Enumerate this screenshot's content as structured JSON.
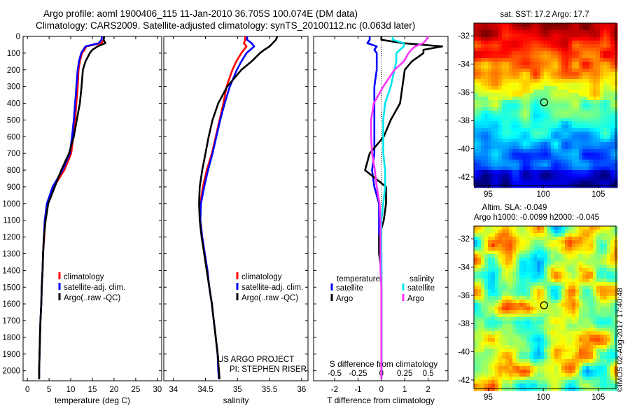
{
  "header": {
    "line1": "Argo profile: aoml 1900406_115 11-Jan-2010 36.705S 100.074E (DM data)",
    "line2": "Climatology: CARS2009. Satellite-adjusted climatology: synTS_20100112.nc (0.063d later)"
  },
  "depth_ticks": [
    0,
    100,
    200,
    300,
    400,
    500,
    600,
    700,
    800,
    900,
    1000,
    1100,
    1200,
    1300,
    1400,
    1500,
    1600,
    1700,
    1800,
    1900,
    2000
  ],
  "colors": {
    "climatology": "#ff0000",
    "satellite": "#0000ff",
    "argo": "#000000",
    "sat_salinity": "#00e5ee",
    "argo_salinity": "#ff33ff"
  },
  "footer": {
    "stamp": "©IMOS 02-Aug-2017 17:40:48"
  },
  "chart_data": [
    {
      "type": "line",
      "name": "temperature",
      "xlabel": "temperature (deg C)",
      "xlim": [
        -1,
        31
      ],
      "ylim": [
        2060,
        0
      ],
      "xticks": [
        0,
        5,
        10,
        15,
        20,
        25,
        30
      ],
      "legend": [
        "climatology",
        "satellite-adj. clim.",
        "Argo(..raw -QC)"
      ],
      "depth": [
        0,
        20,
        40,
        60,
        80,
        100,
        150,
        200,
        300,
        400,
        500,
        600,
        700,
        800,
        900,
        1000,
        1100,
        1200,
        1300,
        1400,
        1500,
        1600,
        1700,
        1800,
        1900,
        2000,
        2050
      ],
      "series": [
        {
          "name": "climatology",
          "values": [
            17.7,
            17.6,
            17.1,
            13.6,
            13.2,
            12.6,
            12.1,
            11.8,
            11.6,
            11.3,
            11.0,
            10.6,
            10.1,
            8.5,
            6.1,
            4.6,
            4.1,
            3.9,
            3.6,
            3.5,
            3.3,
            3.2,
            3.0,
            2.9,
            2.8,
            2.7,
            2.7
          ]
        },
        {
          "name": "satellite-adj. clim.",
          "values": [
            17.2,
            17.1,
            16.5,
            13.4,
            12.9,
            12.4,
            11.9,
            11.6,
            11.3,
            11.0,
            10.7,
            10.3,
            9.8,
            8.1,
            5.8,
            4.5,
            4.0,
            3.8,
            3.6,
            3.5,
            3.3,
            3.2,
            3.0,
            2.9,
            2.8,
            2.7,
            2.7
          ]
        },
        {
          "name": "Argo(..raw -QC)",
          "values": [
            17.7,
            17.6,
            18.0,
            16.2,
            15.0,
            14.4,
            13.4,
            12.8,
            12.5,
            12.1,
            11.4,
            10.7,
            9.6,
            7.8,
            6.3,
            4.8,
            4.2,
            3.8,
            3.6,
            3.5,
            3.3,
            3.2,
            3.0,
            2.9,
            2.8,
            2.7,
            2.7
          ]
        }
      ]
    },
    {
      "type": "line",
      "name": "salinity",
      "xlabel": "salinity",
      "xlim": [
        33.85,
        36.1
      ],
      "ylim": [
        2060,
        0
      ],
      "xticks": [
        34,
        34.5,
        35,
        35.5,
        36
      ],
      "xticklabels": [
        "34",
        "34.5",
        "35",
        "35.5",
        "36"
      ],
      "legend": [
        "climatology",
        "satellite-adj. clim.",
        "Argo(..raw -QC)"
      ],
      "annotation": [
        "US ARGO PROJECT",
        "PI: STEPHEN RISER"
      ],
      "depth": [
        0,
        20,
        40,
        60,
        80,
        100,
        150,
        200,
        300,
        400,
        500,
        600,
        700,
        800,
        900,
        1000,
        1100,
        1200,
        1300,
        1400,
        1500,
        1600,
        1700,
        1800,
        1900,
        2000,
        2050
      ],
      "series": [
        {
          "name": "climatology",
          "values": [
            35.12,
            35.12,
            35.1,
            35.14,
            35.1,
            35.06,
            34.98,
            34.92,
            34.83,
            34.78,
            34.72,
            34.66,
            34.6,
            34.52,
            34.46,
            34.42,
            34.42,
            34.45,
            34.49,
            34.53,
            34.56,
            34.6,
            34.63,
            34.66,
            34.69,
            34.71,
            34.72
          ]
        },
        {
          "name": "satellite-adj. clim.",
          "values": [
            35.15,
            35.15,
            35.22,
            35.26,
            35.2,
            35.14,
            35.06,
            34.99,
            34.88,
            34.8,
            34.73,
            34.67,
            34.61,
            34.54,
            34.48,
            34.43,
            34.42,
            34.45,
            34.49,
            34.53,
            34.56,
            34.6,
            34.63,
            34.66,
            34.69,
            34.7,
            34.71
          ]
        },
        {
          "name": "Argo(..raw -QC)",
          "values": [
            35.62,
            35.6,
            35.55,
            35.5,
            35.42,
            35.35,
            35.22,
            35.06,
            34.84,
            34.7,
            34.61,
            34.55,
            34.5,
            34.45,
            34.41,
            34.4,
            34.41,
            34.44,
            34.48,
            34.52,
            34.56,
            34.6,
            34.63,
            34.66,
            34.69,
            34.71,
            34.72
          ]
        }
      ]
    },
    {
      "type": "line",
      "name": "difference",
      "xlabel": "T difference from climatology",
      "xlabel2": "S difference from climatology",
      "xlim": [
        -2.9,
        2.85
      ],
      "ylim": [
        2060,
        0
      ],
      "xticks": [
        -2,
        -1,
        0,
        1,
        2
      ],
      "top_xticks": [
        -0.5,
        -0.25,
        0,
        0.25,
        0.5
      ],
      "top_xticklabels": [
        "-0.5",
        "-0.25",
        "0",
        "0.25",
        "0.5"
      ],
      "legend_headers": [
        "temperature",
        "salinity"
      ],
      "legend": [
        "satellite",
        "Argo",
        "satellite",
        "Argo"
      ],
      "depth": [
        0,
        20,
        40,
        60,
        80,
        100,
        150,
        200,
        300,
        400,
        500,
        600,
        700,
        800,
        900,
        1000,
        1100,
        1200,
        1300,
        1400,
        1500,
        1600,
        1700,
        1800,
        1900,
        2000,
        2050
      ],
      "series": [
        {
          "name": "temperature satellite",
          "values": [
            -0.5,
            -0.5,
            -0.6,
            -0.2,
            -0.3,
            -0.2,
            -0.2,
            -0.2,
            -0.3,
            -0.3,
            -0.3,
            -0.3,
            -0.3,
            -0.4,
            -0.3,
            -0.1,
            -0.1,
            -0.1,
            0,
            0,
            0,
            0,
            0,
            0,
            0,
            0,
            0
          ]
        },
        {
          "name": "temperature Argo",
          "values": [
            0,
            0,
            0.9,
            2.6,
            1.8,
            1.8,
            1.3,
            1.0,
            0.9,
            0.8,
            0.4,
            0.1,
            -0.5,
            -0.7,
            0.2,
            0.2,
            0.1,
            -0.1,
            -0.1,
            0,
            0,
            0,
            0,
            0,
            0,
            0,
            0
          ]
        },
        {
          "name": "salinity satellite",
          "values": [
            0.12,
            0.12,
            0.24,
            0.24,
            0.2,
            0.16,
            0.16,
            0.14,
            0.1,
            0.04,
            0.02,
            0.02,
            0.02,
            0.04,
            0.04,
            0.02,
            0,
            0,
            0,
            0,
            0,
            0,
            0,
            0,
            0,
            0,
            0
          ]
        },
        {
          "name": "salinity Argo",
          "values": [
            0.5,
            0.48,
            0.45,
            0.36,
            0.32,
            0.29,
            0.24,
            0.14,
            0.02,
            -0.08,
            -0.11,
            -0.11,
            -0.1,
            -0.07,
            -0.05,
            -0.02,
            -0.01,
            -0.01,
            -0.01,
            -0.01,
            0,
            0,
            0,
            0,
            0,
            0,
            0
          ]
        }
      ]
    }
  ],
  "maps": [
    {
      "name": "sst",
      "title": "sat. SST: 17.2 Argo: 17.7",
      "yticks": [
        -32,
        -34,
        -36,
        -38,
        -40,
        -42
      ],
      "xticks": [
        95,
        100,
        105
      ],
      "xlim": [
        93.7,
        106.6
      ],
      "ylim": [
        -42.6,
        -31.1
      ],
      "marker": {
        "lon": 100.074,
        "lat": -36.705
      }
    },
    {
      "name": "sla",
      "title": "Altim. SLA: -0.049",
      "subtitle": "Argo h1000: -0.0099 h2000: -0.045",
      "yticks": [
        -32,
        -34,
        -36,
        -38,
        -40,
        -42
      ],
      "xticks": [
        95,
        100,
        105
      ],
      "xlim": [
        93.7,
        106.6
      ],
      "ylim": [
        -42.6,
        -31.1
      ],
      "marker": {
        "lon": 100.074,
        "lat": -36.705
      }
    }
  ]
}
